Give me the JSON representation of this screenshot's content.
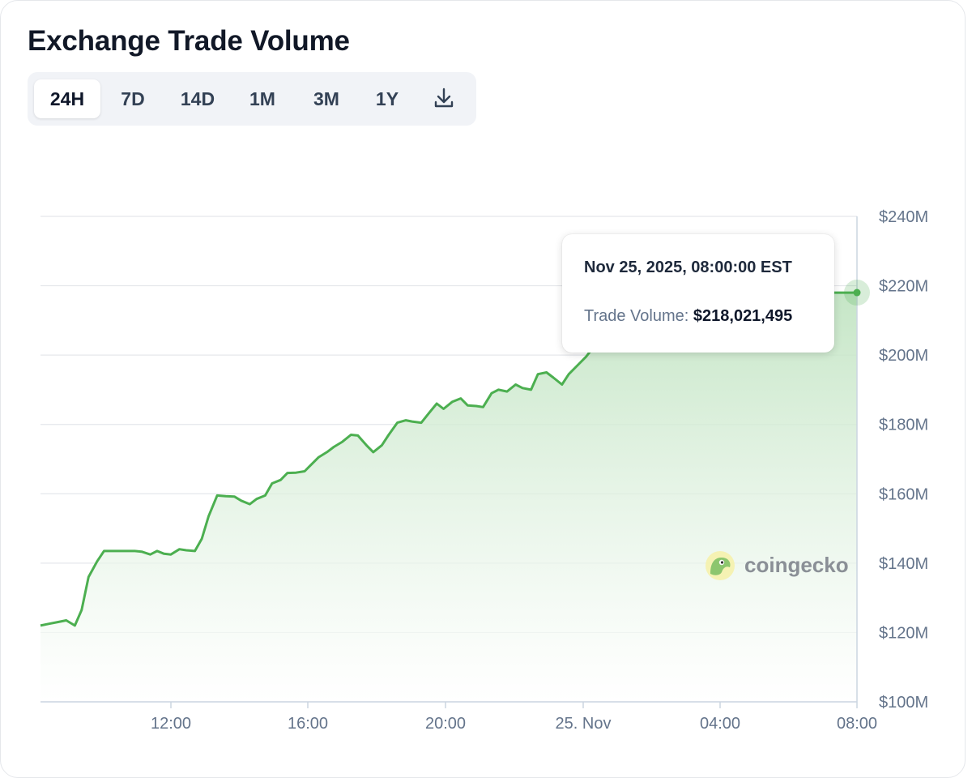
{
  "title": "Exchange Trade Volume",
  "tabs": [
    {
      "label": "24H",
      "active": true
    },
    {
      "label": "7D",
      "active": false
    },
    {
      "label": "14D",
      "active": false
    },
    {
      "label": "1M",
      "active": false
    },
    {
      "label": "3M",
      "active": false
    },
    {
      "label": "1Y",
      "active": false
    }
  ],
  "download_icon": "download-icon",
  "tooltip": {
    "date": "Nov 25, 2025, 08:00:00 EST",
    "label": "Trade Volume:",
    "value": "$218,021,495"
  },
  "watermark": "coingecko",
  "colors": {
    "line": "#4caf50",
    "area_top": "#c8e6c9",
    "area_bottom": "#ffffff",
    "grid": "#e5e7eb",
    "tick": "#64748b"
  },
  "chart_data": {
    "type": "area",
    "title": "Exchange Trade Volume",
    "x_tick_labels": [
      "12:00",
      "16:00",
      "20:00",
      "25. Nov",
      "04:00",
      "08:00"
    ],
    "y_tick_labels": [
      "$100M",
      "$120M",
      "$140M",
      "$160M",
      "$180M",
      "$200M",
      "$220M",
      "$240M"
    ],
    "ylim": [
      100,
      240
    ],
    "y_unit": "$M",
    "xlim": [
      8.2,
      32.0
    ],
    "x_unit": "hours since Nov 24 00:00 EST",
    "grid": true,
    "series": [
      {
        "x": [
          8.2,
          8.45,
          8.7,
          8.95,
          9.2,
          9.4,
          9.6,
          9.85,
          10.05,
          10.3,
          10.5,
          10.7,
          10.95,
          11.15,
          11.4,
          11.6,
          11.8,
          12.0,
          12.25,
          12.45,
          12.7,
          12.9,
          13.1,
          13.35,
          13.6,
          13.85,
          14.05,
          14.3,
          14.5,
          14.75,
          14.95,
          15.2,
          15.4,
          15.65,
          15.9,
          16.1,
          16.3,
          16.55,
          16.75,
          17.0,
          17.25,
          17.45,
          17.7,
          17.9,
          18.15,
          18.35,
          18.6,
          18.85,
          19.05,
          19.3,
          19.5,
          19.75,
          19.95,
          20.2,
          20.45,
          20.65,
          20.9,
          21.1,
          21.35,
          21.55,
          21.8,
          22.05,
          22.25,
          22.5,
          22.7,
          22.95,
          23.15,
          23.4,
          23.6,
          23.85,
          24.1,
          24.3,
          24.55,
          24.75,
          25.0,
          25.2,
          25.45,
          25.65,
          25.9,
          26.15,
          26.35,
          26.6,
          26.8,
          27.05,
          27.25,
          27.5,
          27.7,
          27.95,
          28.2,
          28.4,
          28.65,
          28.85,
          29.1,
          29.3,
          29.55,
          29.75,
          30.0,
          30.25,
          30.45,
          30.7,
          30.9,
          31.15,
          31.4,
          31.6,
          31.85,
          32.0
        ],
        "y": [
          122,
          122.5,
          123,
          123.5,
          122,
          126.5,
          136,
          140.5,
          143.5,
          143.5,
          143.5,
          143.5,
          143.5,
          143.3,
          142.5,
          143.5,
          142.7,
          142.5,
          144,
          143.7,
          143.5,
          147,
          153.5,
          159.5,
          159.3,
          159.2,
          158,
          157,
          158.5,
          159.5,
          163,
          164,
          166,
          166.1,
          166.5,
          168.5,
          170.5,
          172,
          173.5,
          175,
          177,
          176.8,
          174,
          172,
          174,
          177,
          180.5,
          181.2,
          180.8,
          180.5,
          183,
          186,
          184.5,
          186.5,
          187.5,
          185.5,
          185.3,
          185,
          189,
          190,
          189.5,
          191.5,
          190.5,
          190,
          194.5,
          195,
          193.5,
          191.5,
          194.5,
          197,
          199.5,
          202,
          205,
          207.5,
          209,
          210.5,
          212,
          213,
          214,
          215,
          215.5,
          216,
          216.5,
          217,
          217.4,
          217.6,
          217.8,
          217.9,
          218,
          218,
          218,
          218,
          218,
          218,
          218,
          218,
          218,
          218,
          218,
          218,
          218,
          218,
          218,
          218,
          218,
          218.02
        ]
      }
    ],
    "tooltip_point": {
      "x": 32.0,
      "y": 218.02
    }
  }
}
